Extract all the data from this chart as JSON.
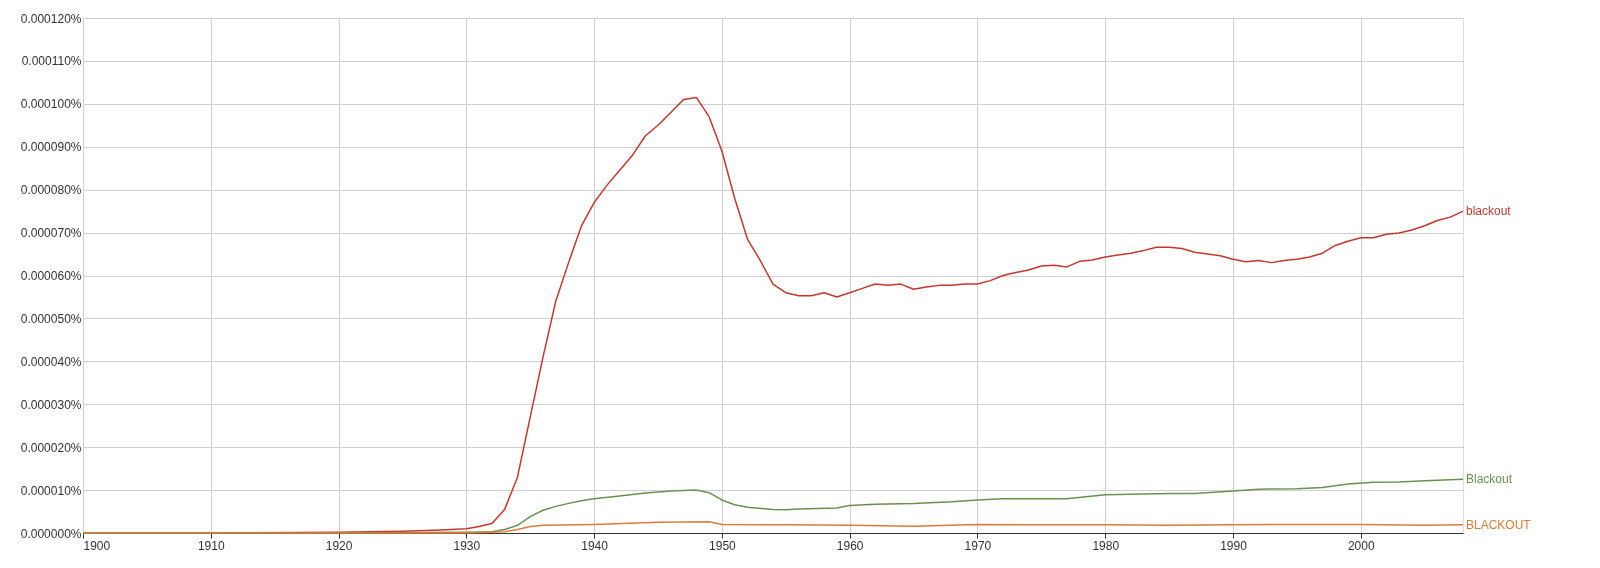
{
  "chart_data": {
    "type": "line",
    "xlim": [
      1900,
      2008
    ],
    "xticks": [
      1900,
      1910,
      1920,
      1930,
      1940,
      1950,
      1960,
      1970,
      1980,
      1990,
      2000
    ],
    "ylim": [
      0,
      0.00012
    ],
    "yticks": [
      {
        "value": 0,
        "label": "0.000000%"
      },
      {
        "value": 1e-05,
        "label": "0.000010%"
      },
      {
        "value": 2e-05,
        "label": "0.000020%"
      },
      {
        "value": 3e-05,
        "label": "0.000030%"
      },
      {
        "value": 4e-05,
        "label": "0.000040%"
      },
      {
        "value": 5e-05,
        "label": "0.000050%"
      },
      {
        "value": 6e-05,
        "label": "0.000060%"
      },
      {
        "value": 7e-05,
        "label": "0.000070%"
      },
      {
        "value": 8e-05,
        "label": "0.000080%"
      },
      {
        "value": 9e-05,
        "label": "0.000090%"
      },
      {
        "value": 0.0001,
        "label": "0.000100%"
      },
      {
        "value": 0.00011,
        "label": "0.000110%"
      },
      {
        "value": 0.00012,
        "label": "0.000120%"
      }
    ],
    "grid": true,
    "marker": "none",
    "line_style": "solid",
    "series": [
      {
        "name": "blackout",
        "color": "#c8372d",
        "x": [
          1900,
          1910,
          1920,
          1925,
          1928,
          1930,
          1931,
          1932,
          1933,
          1934,
          1935,
          1936,
          1937,
          1938,
          1939,
          1940,
          1941,
          1942,
          1943,
          1944,
          1945,
          1946,
          1947,
          1948,
          1949,
          1950,
          1951,
          1952,
          1953,
          1954,
          1955,
          1956,
          1957,
          1958,
          1959,
          1960,
          1961,
          1962,
          1963,
          1964,
          1965,
          1966,
          1967,
          1968,
          1969,
          1970,
          1971,
          1972,
          1973,
          1974,
          1975,
          1976,
          1977,
          1978,
          1979,
          1980,
          1981,
          1982,
          1983,
          1984,
          1985,
          1986,
          1987,
          1988,
          1989,
          1990,
          1991,
          1992,
          1993,
          1994,
          1995,
          1996,
          1997,
          1998,
          1999,
          2000,
          2001,
          2002,
          2003,
          2004,
          2005,
          2006,
          2007,
          2008
        ],
        "values": [
          0,
          0,
          2e-07,
          4e-07,
          7e-07,
          1e-06,
          1.5e-06,
          2.2e-06,
          5.5e-06,
          1.3e-05,
          2.7e-05,
          4.1e-05,
          5.4e-05,
          6.3e-05,
          7.15e-05,
          7.7e-05,
          8.1e-05,
          8.45e-05,
          8.8e-05,
          9.25e-05,
          9.5e-05,
          9.8e-05,
          0.000101,
          0.0001015,
          9.7e-05,
          8.9e-05,
          7.8e-05,
          6.85e-05,
          6.35e-05,
          5.8e-05,
          5.6e-05,
          5.53e-05,
          5.53e-05,
          5.6e-05,
          5.5e-05,
          5.6e-05,
          5.7e-05,
          5.8e-05,
          5.77e-05,
          5.8e-05,
          5.68e-05,
          5.73e-05,
          5.77e-05,
          5.77e-05,
          5.8e-05,
          5.8e-05,
          5.88e-05,
          6e-05,
          6.07e-05,
          6.13e-05,
          6.22e-05,
          6.24e-05,
          6.2e-05,
          6.33e-05,
          6.36e-05,
          6.43e-05,
          6.48e-05,
          6.52e-05,
          6.58e-05,
          6.66e-05,
          6.66e-05,
          6.63e-05,
          6.54e-05,
          6.5e-05,
          6.46e-05,
          6.38e-05,
          6.32e-05,
          6.35e-05,
          6.3e-05,
          6.35e-05,
          6.38e-05,
          6.43e-05,
          6.52e-05,
          6.7e-05,
          6.8e-05,
          6.88e-05,
          6.88e-05,
          6.96e-05,
          6.99e-05,
          7.06e-05,
          7.16e-05,
          7.28e-05,
          7.36e-05,
          7.5e-05
        ]
      },
      {
        "name": "Blackout",
        "color": "#6b9150",
        "x": [
          1900,
          1920,
          1930,
          1932,
          1933,
          1934,
          1935,
          1936,
          1937,
          1938,
          1939,
          1940,
          1942,
          1944,
          1946,
          1948,
          1949,
          1950,
          1951,
          1952,
          1954,
          1955,
          1956,
          1959,
          1960,
          1962,
          1965,
          1968,
          1970,
          1972,
          1975,
          1977,
          1980,
          1983,
          1985,
          1987,
          1990,
          1992,
          1995,
          1997,
          1999,
          2001,
          2003,
          2005,
          2008
        ],
        "values": [
          0,
          0,
          2e-07,
          3e-07,
          8e-07,
          1.8e-06,
          3.8e-06,
          5.3e-06,
          6.2e-06,
          6.9e-06,
          7.5e-06,
          8e-06,
          8.6e-06,
          9.3e-06,
          9.8e-06,
          1e-05,
          9.4e-06,
          7.7e-06,
          6.6e-06,
          6e-06,
          5.5e-06,
          5.4e-06,
          5.6e-06,
          5.8e-06,
          6.4e-06,
          6.7e-06,
          6.9e-06,
          7.3e-06,
          7.7e-06,
          8e-06,
          8e-06,
          8e-06,
          8.9e-06,
          9.1e-06,
          9.2e-06,
          9.2e-06,
          9.8e-06,
          1.02e-05,
          1.03e-05,
          1.06e-05,
          1.14e-05,
          1.18e-05,
          1.19e-05,
          1.22e-05,
          1.25e-05
        ]
      },
      {
        "name": "BLACKOUT",
        "color": "#e07b39",
        "x": [
          1900,
          1930,
          1933,
          1934,
          1935,
          1936,
          1940,
          1945,
          1949,
          1950,
          1955,
          1960,
          1965,
          1970,
          1975,
          1980,
          1985,
          1990,
          1995,
          2000,
          2005,
          2008
        ],
        "values": [
          0,
          0,
          3e-07,
          8e-07,
          1.5e-06,
          1.8e-06,
          2e-06,
          2.5e-06,
          2.6e-06,
          2e-06,
          1.9e-06,
          1.8e-06,
          1.6e-06,
          2e-06,
          1.9e-06,
          1.9e-06,
          1.8e-06,
          1.9e-06,
          2e-06,
          2e-06,
          1.8e-06,
          1.9e-06
        ]
      }
    ]
  }
}
